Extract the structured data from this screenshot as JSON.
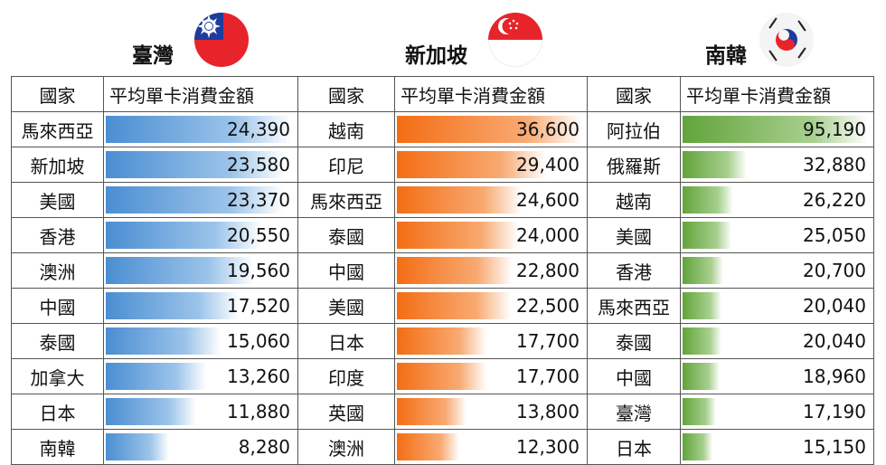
{
  "sections": [
    {
      "id": "tw",
      "title": "臺灣",
      "flag_icon": "taiwan-flag-icon",
      "bar_color": "#4a8ed2",
      "rows": [
        {
          "country": "馬來西亞",
          "value": "24,390",
          "amount": 24390
        },
        {
          "country": "新加坡",
          "value": "23,580",
          "amount": 23580
        },
        {
          "country": "美國",
          "value": "23,370",
          "amount": 23370
        },
        {
          "country": "香港",
          "value": "20,550",
          "amount": 20550
        },
        {
          "country": "澳洲",
          "value": "19,560",
          "amount": 19560
        },
        {
          "country": "中國",
          "value": "17,520",
          "amount": 17520
        },
        {
          "country": "泰國",
          "value": "15,060",
          "amount": 15060
        },
        {
          "country": "加拿大",
          "value": "13,260",
          "amount": 13260
        },
        {
          "country": "日本",
          "value": "11,880",
          "amount": 11880
        },
        {
          "country": "南韓",
          "value": "8,280",
          "amount": 8280
        }
      ]
    },
    {
      "id": "sg",
      "title": "新加坡",
      "flag_icon": "singapore-flag-icon",
      "bar_color": "#f46d14",
      "rows": [
        {
          "country": "越南",
          "value": "36,600",
          "amount": 36600
        },
        {
          "country": "印尼",
          "value": "29,400",
          "amount": 29400
        },
        {
          "country": "馬來西亞",
          "value": "24,600",
          "amount": 24600
        },
        {
          "country": "泰國",
          "value": "24,000",
          "amount": 24000
        },
        {
          "country": "中國",
          "value": "22,800",
          "amount": 22800
        },
        {
          "country": "美國",
          "value": "22,500",
          "amount": 22500
        },
        {
          "country": "日本",
          "value": "17,700",
          "amount": 17700
        },
        {
          "country": "印度",
          "value": "17,700",
          "amount": 17700
        },
        {
          "country": "英國",
          "value": "13,800",
          "amount": 13800
        },
        {
          "country": "澳洲",
          "value": "12,300",
          "amount": 12300
        }
      ]
    },
    {
      "id": "kr",
      "title": "南韓",
      "flag_icon": "korea-flag-icon",
      "bar_color": "#62a43a",
      "rows": [
        {
          "country": "阿拉伯",
          "value": "95,190",
          "amount": 95190
        },
        {
          "country": "俄羅斯",
          "value": "32,880",
          "amount": 32880
        },
        {
          "country": "越南",
          "value": "26,220",
          "amount": 26220
        },
        {
          "country": "美國",
          "value": "25,050",
          "amount": 25050
        },
        {
          "country": "香港",
          "value": "20,700",
          "amount": 20700
        },
        {
          "country": "馬來西亞",
          "value": "20,040",
          "amount": 20040
        },
        {
          "country": "泰國",
          "value": "20,040",
          "amount": 20040
        },
        {
          "country": "中國",
          "value": "18,960",
          "amount": 18960
        },
        {
          "country": "臺灣",
          "value": "17,190",
          "amount": 17190
        },
        {
          "country": "日本",
          "value": "15,150",
          "amount": 15150
        }
      ]
    }
  ],
  "table": {
    "col_country": "國家",
    "col_amount": "平均單卡消費金額"
  }
}
